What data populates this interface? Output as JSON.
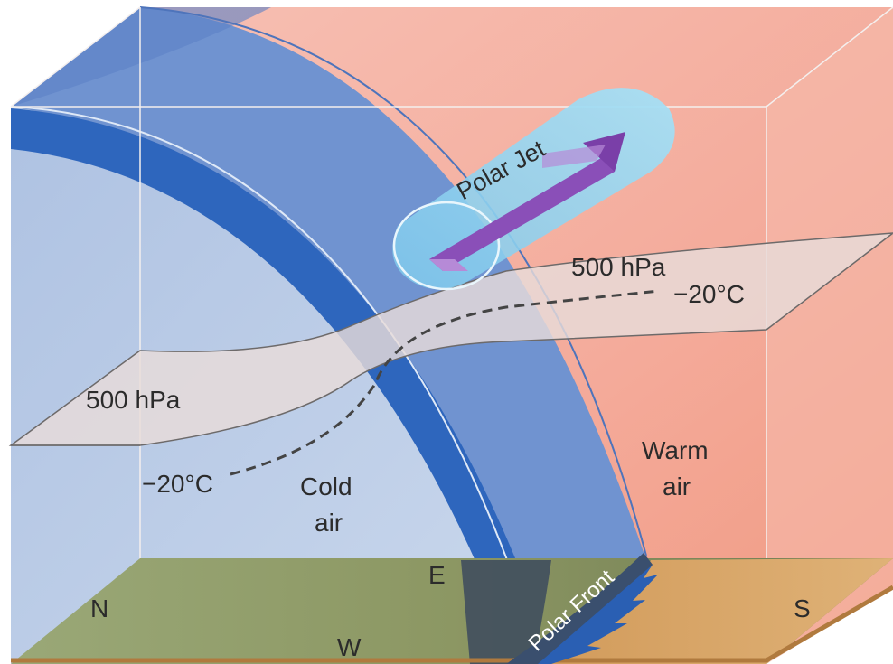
{
  "labels": {
    "polar_jet": "Polar Jet",
    "pressure_upper": "500 hPa",
    "pressure_lower": "500 hPa",
    "temp_upper": "−20°C",
    "temp_lower": "−20°C",
    "warm_air_line1": "Warm",
    "warm_air_line2": "air",
    "cold_air_line1": "Cold",
    "cold_air_line2": "air",
    "polar_front": "Polar Front",
    "north": "N",
    "south": "S",
    "east": "E",
    "west": "W"
  },
  "colors": {
    "warm_air": "#f2a595",
    "cold_air": "#bccde6",
    "front_band": "#6c8fcc",
    "tropopause_band": "#2e66bd",
    "jet_stream": "#8ed3f0",
    "jet_arrow": "#8a4fb8",
    "pressure_surface": "#e6dad7",
    "ground_cold": "#8d9a66",
    "ground_warm": "#c99a5e",
    "front_line": "#2a5fb3"
  }
}
